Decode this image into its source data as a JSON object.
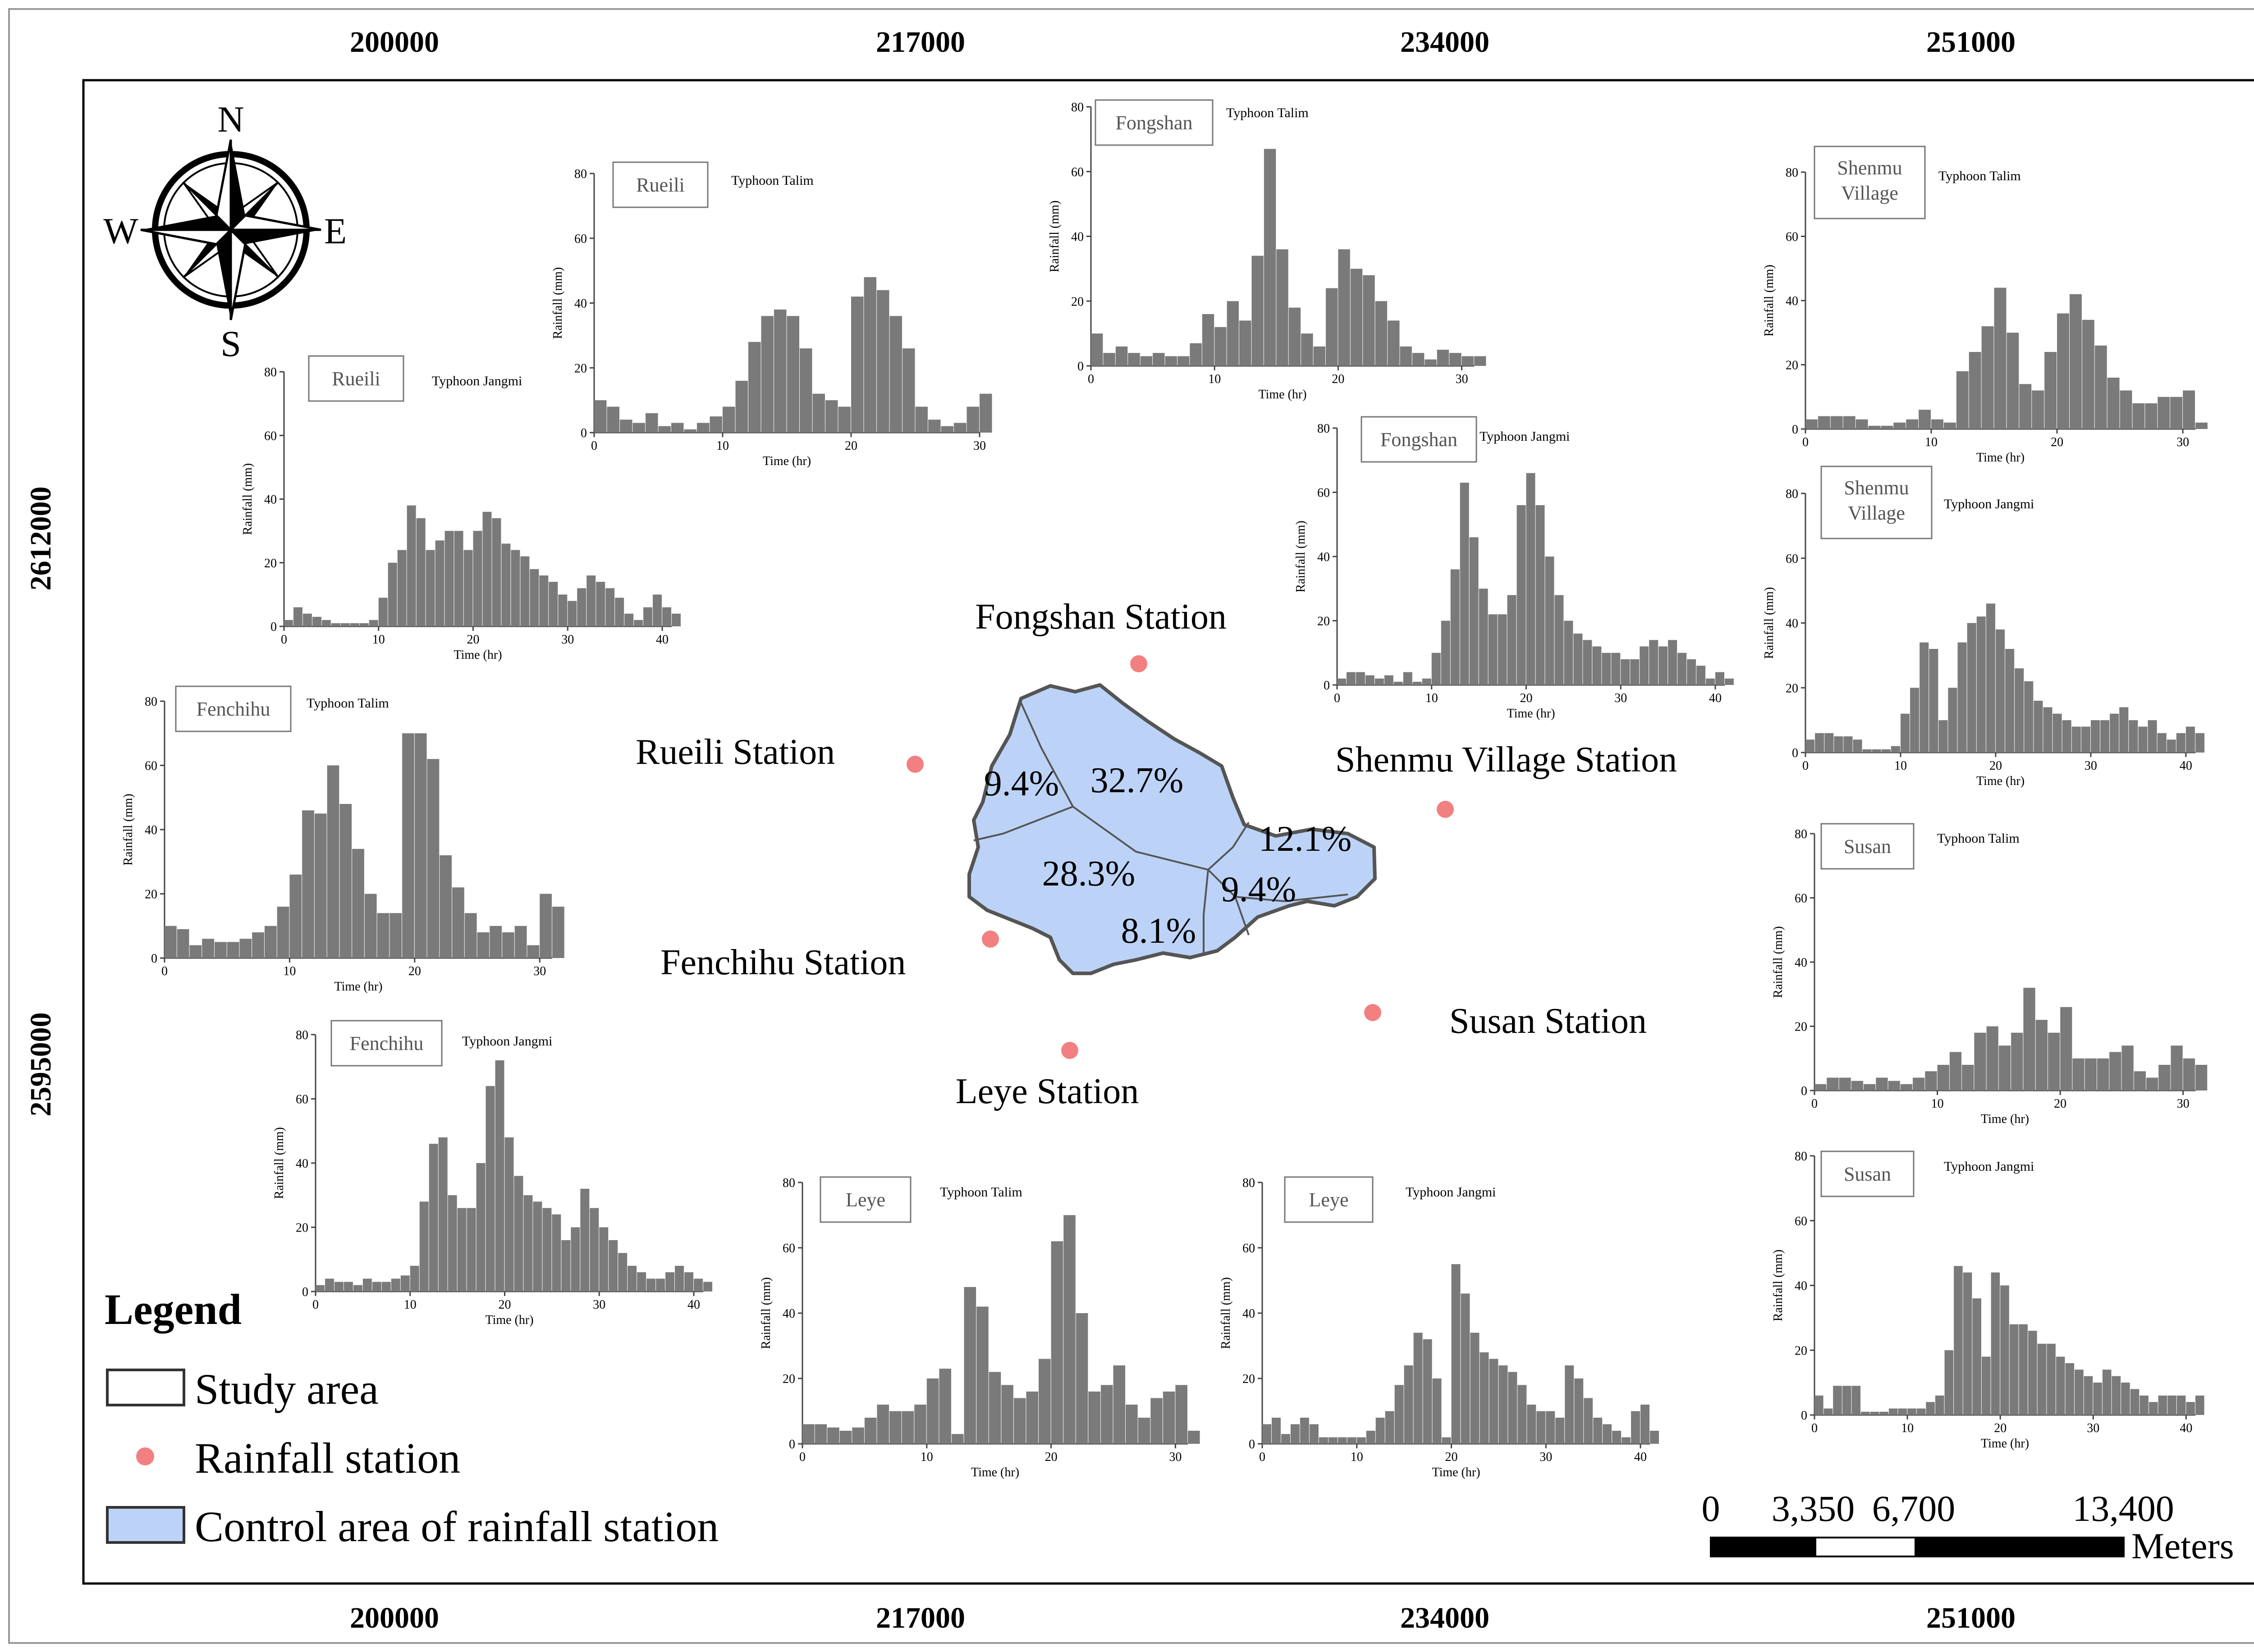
{
  "axes": {
    "x_ticks": [
      "200000",
      "217000",
      "234000",
      "251000"
    ],
    "y_ticks": [
      "2612000",
      "2595000"
    ]
  },
  "compass": {
    "n": "N",
    "s": "S",
    "e": "E",
    "w": "W"
  },
  "stations": [
    {
      "name": "Fongshan Station"
    },
    {
      "name": "Rueili  Station"
    },
    {
      "name": "Shenmu Village Station"
    },
    {
      "name": "Fenchihu  Station"
    },
    {
      "name": "Susan Station"
    },
    {
      "name": "Leye Station"
    }
  ],
  "control_areas": [
    "9.4%",
    "32.7%",
    "12.1%",
    "28.3%",
    "9.4%",
    "8.1%"
  ],
  "legend": {
    "title": "Legend",
    "items": [
      "Study area",
      "Rainfall station",
      "Control area of rainfall station"
    ],
    "colors": {
      "control_area": "#bcd3f7",
      "station": "#f28080",
      "bars": "#7a7a7a"
    }
  },
  "scalebar": {
    "labels": [
      "0",
      "3,350",
      "6,700",
      "13,400"
    ],
    "unit": "Meters"
  },
  "chart_data": [
    {
      "type": "bar",
      "station": "Rueili",
      "typhoon": "Typhoon Talim",
      "ylabel": "Rainfall (mm)",
      "xlabel": "Time (hr)",
      "ylim": [
        0,
        80
      ],
      "y_ticks": [
        "0",
        "20",
        "40",
        "60",
        "80"
      ],
      "x_ticks": [
        "0",
        "10",
        "20",
        "30"
      ],
      "values": [
        10,
        8,
        4,
        3,
        6,
        2,
        3,
        1,
        3,
        5,
        8,
        16,
        28,
        36,
        38,
        36,
        26,
        12,
        10,
        8,
        42,
        48,
        44,
        36,
        26,
        8,
        4,
        2,
        3,
        8,
        12
      ]
    },
    {
      "type": "bar",
      "station": "Rueili",
      "typhoon": "Typhoon Jangmi",
      "ylabel": "Rainfall (mm)",
      "xlabel": "Time (hr)",
      "ylim": [
        0,
        80
      ],
      "y_ticks": [
        "0",
        "20",
        "40",
        "60",
        "80"
      ],
      "x_ticks": [
        "0",
        "10",
        "20",
        "30",
        "40"
      ],
      "values": [
        2,
        6,
        4,
        3,
        2,
        1,
        1,
        1,
        1,
        2,
        9,
        20,
        24,
        38,
        34,
        24,
        27,
        30,
        30,
        24,
        30,
        36,
        34,
        26,
        24,
        22,
        18,
        16,
        14,
        10,
        8,
        12,
        16,
        14,
        12,
        9,
        4,
        2,
        6,
        10,
        6,
        4
      ]
    },
    {
      "type": "bar",
      "station": "Fongshan",
      "typhoon": "Typhoon Talim",
      "ylabel": "Rainfall (mm)",
      "xlabel": "Time (hr)",
      "ylim": [
        0,
        80
      ],
      "y_ticks": [
        "0",
        "20",
        "40",
        "60",
        "80"
      ],
      "x_ticks": [
        "0",
        "10",
        "20",
        "30"
      ],
      "values": [
        10,
        4,
        6,
        4,
        3,
        4,
        3,
        3,
        7,
        16,
        12,
        20,
        14,
        34,
        67,
        36,
        18,
        10,
        6,
        24,
        36,
        30,
        28,
        20,
        14,
        6,
        4,
        2,
        5,
        4,
        3,
        3
      ]
    },
    {
      "type": "bar",
      "station": "Fongshan",
      "typhoon": "Typhoon Jangmi",
      "ylabel": "Rainfall (mm)",
      "xlabel": "Time (hr)",
      "ylim": [
        0,
        80
      ],
      "y_ticks": [
        "0",
        "20",
        "40",
        "60",
        "80"
      ],
      "x_ticks": [
        "0",
        "10",
        "20",
        "30",
        "40"
      ],
      "values": [
        2,
        4,
        4,
        3,
        2,
        3,
        1,
        4,
        1,
        2,
        10,
        20,
        36,
        63,
        46,
        30,
        22,
        22,
        28,
        56,
        66,
        56,
        40,
        28,
        20,
        16,
        14,
        12,
        10,
        10,
        8,
        8,
        12,
        14,
        12,
        14,
        10,
        8,
        6,
        2,
        4,
        2
      ]
    },
    {
      "type": "bar",
      "station": "Shenmu Village",
      "typhoon": "Typhoon Talim",
      "ylabel": "Rainfall (mm)",
      "xlabel": "Time (hr)",
      "ylim": [
        0,
        80
      ],
      "y_ticks": [
        "0",
        "20",
        "40",
        "60",
        "80"
      ],
      "x_ticks": [
        "0",
        "10",
        "20",
        "30"
      ],
      "values": [
        3,
        4,
        4,
        4,
        3,
        1,
        1,
        2,
        3,
        6,
        3,
        2,
        18,
        24,
        32,
        44,
        30,
        14,
        12,
        24,
        36,
        42,
        34,
        26,
        16,
        12,
        8,
        8,
        10,
        10,
        12,
        2
      ]
    },
    {
      "type": "bar",
      "station": "Shenmu Village",
      "typhoon": "Typhoon Jangmi",
      "ylabel": "Rainfall (mm)",
      "xlabel": "Time (hr)",
      "ylim": [
        0,
        80
      ],
      "y_ticks": [
        "0",
        "20",
        "40",
        "60",
        "80"
      ],
      "x_ticks": [
        "0",
        "10",
        "20",
        "30",
        "40"
      ],
      "values": [
        4,
        6,
        6,
        5,
        5,
        4,
        1,
        1,
        1,
        2,
        12,
        20,
        34,
        32,
        10,
        20,
        34,
        40,
        42,
        46,
        38,
        32,
        26,
        22,
        16,
        14,
        12,
        10,
        8,
        8,
        10,
        10,
        12,
        14,
        10,
        8,
        10,
        6,
        4,
        6,
        8,
        6
      ]
    },
    {
      "type": "bar",
      "station": "Susan",
      "typhoon": "Typhoon Talim",
      "ylabel": "Rainfall (mm)",
      "xlabel": "Time (hr)",
      "ylim": [
        0,
        80
      ],
      "y_ticks": [
        "0",
        "20",
        "40",
        "60",
        "80"
      ],
      "x_ticks": [
        "0",
        "10",
        "20",
        "30"
      ],
      "values": [
        2,
        4,
        4,
        3,
        2,
        4,
        3,
        2,
        4,
        6,
        8,
        12,
        8,
        18,
        20,
        14,
        18,
        32,
        22,
        18,
        26,
        10,
        10,
        10,
        12,
        14,
        6,
        4,
        8,
        14,
        10,
        8
      ]
    },
    {
      "type": "bar",
      "station": "Susan",
      "typhoon": "Typhoon Jangmi",
      "ylabel": "Rainfall (mm)",
      "xlabel": "Time (hr)",
      "ylim": [
        0,
        80
      ],
      "y_ticks": [
        "0",
        "20",
        "40",
        "60",
        "80"
      ],
      "x_ticks": [
        "0",
        "10",
        "20",
        "30",
        "40"
      ],
      "values": [
        6,
        2,
        9,
        9,
        9,
        1,
        1,
        1,
        2,
        2,
        2,
        2,
        4,
        6,
        20,
        46,
        44,
        36,
        18,
        44,
        40,
        28,
        28,
        26,
        22,
        22,
        18,
        16,
        14,
        12,
        10,
        14,
        12,
        10,
        8,
        6,
        4,
        6,
        6,
        6,
        4,
        6
      ]
    },
    {
      "type": "bar",
      "station": "Fenchihu",
      "typhoon": "Typhoon Talim",
      "ylabel": "Rainfall (mm)",
      "xlabel": "Time (hr)",
      "ylim": [
        0,
        80
      ],
      "y_ticks": [
        "0",
        "20",
        "40",
        "60",
        "80"
      ],
      "x_ticks": [
        "0",
        "10",
        "20",
        "30"
      ],
      "values": [
        10,
        9,
        4,
        6,
        5,
        5,
        6,
        8,
        10,
        16,
        26,
        46,
        45,
        60,
        48,
        34,
        20,
        14,
        14,
        70,
        70,
        62,
        32,
        22,
        14,
        8,
        10,
        8,
        10,
        4,
        20,
        16
      ]
    },
    {
      "type": "bar",
      "station": "Fenchihu",
      "typhoon": "Typhoon Jangmi",
      "ylabel": "Rainfall (mm)",
      "xlabel": "Time (hr)",
      "ylim": [
        0,
        80
      ],
      "y_ticks": [
        "0",
        "20",
        "40",
        "60",
        "80"
      ],
      "x_ticks": [
        "0",
        "10",
        "20",
        "30",
        "40"
      ],
      "values": [
        2,
        4,
        3,
        3,
        2,
        4,
        3,
        3,
        4,
        5,
        8,
        28,
        46,
        48,
        30,
        26,
        26,
        40,
        64,
        72,
        48,
        36,
        30,
        28,
        26,
        24,
        16,
        20,
        32,
        26,
        20,
        16,
        12,
        8,
        6,
        4,
        4,
        6,
        8,
        6,
        4,
        3
      ]
    },
    {
      "type": "bar",
      "station": "Leye",
      "typhoon": "Typhoon Talim",
      "ylabel": "Rainfall (mm)",
      "xlabel": "Time (hr)",
      "ylim": [
        0,
        80
      ],
      "y_ticks": [
        "0",
        "20",
        "40",
        "60",
        "80"
      ],
      "x_ticks": [
        "0",
        "10",
        "20",
        "30"
      ],
      "values": [
        6,
        6,
        5,
        4,
        5,
        8,
        12,
        10,
        10,
        12,
        20,
        23,
        3,
        48,
        42,
        22,
        18,
        14,
        16,
        26,
        62,
        70,
        40,
        16,
        18,
        24,
        12,
        8,
        14,
        16,
        18,
        4
      ]
    },
    {
      "type": "bar",
      "station": "Leye",
      "typhoon": "Typhoon Jangmi",
      "ylabel": "Rainfall (mm)",
      "xlabel": "Time (hr)",
      "ylim": [
        0,
        80
      ],
      "y_ticks": [
        "0",
        "20",
        "40",
        "60",
        "80"
      ],
      "x_ticks": [
        "0",
        "10",
        "20",
        "30",
        "40"
      ],
      "values": [
        6,
        8,
        3,
        6,
        8,
        6,
        2,
        2,
        2,
        2,
        2,
        4,
        8,
        10,
        18,
        24,
        34,
        32,
        20,
        2,
        55,
        46,
        34,
        28,
        26,
        24,
        22,
        18,
        12,
        10,
        10,
        8,
        24,
        20,
        14,
        8,
        6,
        4,
        2,
        10,
        12,
        4
      ]
    }
  ]
}
